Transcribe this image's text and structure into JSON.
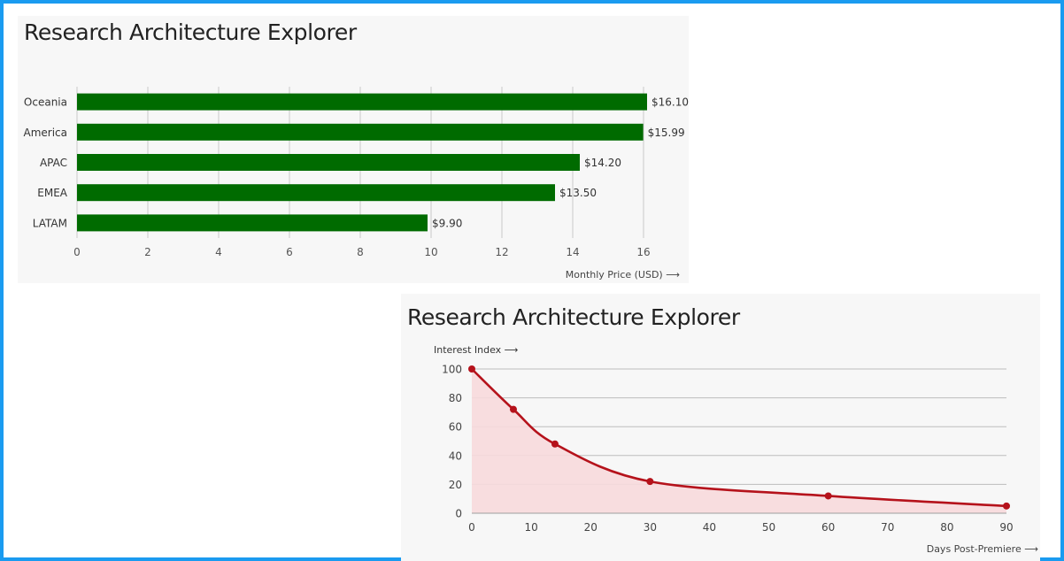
{
  "chart_data": [
    {
      "type": "bar",
      "orientation": "horizontal",
      "title": "Research Architecture Explorer",
      "categories": [
        "Oceania",
        "America",
        "APAC",
        "EMEA",
        "LATAM"
      ],
      "values": [
        16.1,
        15.99,
        14.2,
        13.5,
        9.9
      ],
      "data_labels": [
        "$16.10",
        "$15.99",
        "$14.20",
        "$13.50",
        "$9.90"
      ],
      "xlabel": "Monthly Price (USD) ⟶",
      "ylabel": "",
      "xlim": [
        0,
        16
      ],
      "xticks": [
        "0",
        "2",
        "4",
        "6",
        "8",
        "10",
        "12",
        "14",
        "16"
      ],
      "grid": "vertical",
      "bar_color": "#006b00"
    },
    {
      "type": "area",
      "title": "Research Architecture Explorer",
      "x": [
        0,
        7,
        14,
        30,
        60,
        90
      ],
      "y": [
        100,
        72,
        48,
        22,
        12,
        5
      ],
      "xlabel": "Days Post-Premiere ⟶",
      "ylabel": "Interest Index ⟶",
      "xlim": [
        0,
        90
      ],
      "ylim": [
        0,
        100
      ],
      "xticks": [
        "0",
        "10",
        "20",
        "30",
        "40",
        "50",
        "60",
        "70",
        "80",
        "90"
      ],
      "yticks": [
        "0",
        "20",
        "40",
        "60",
        "80",
        "100"
      ],
      "grid": "horizontal",
      "line_color": "#b5121b",
      "fill_color": "#f7d9db"
    }
  ]
}
